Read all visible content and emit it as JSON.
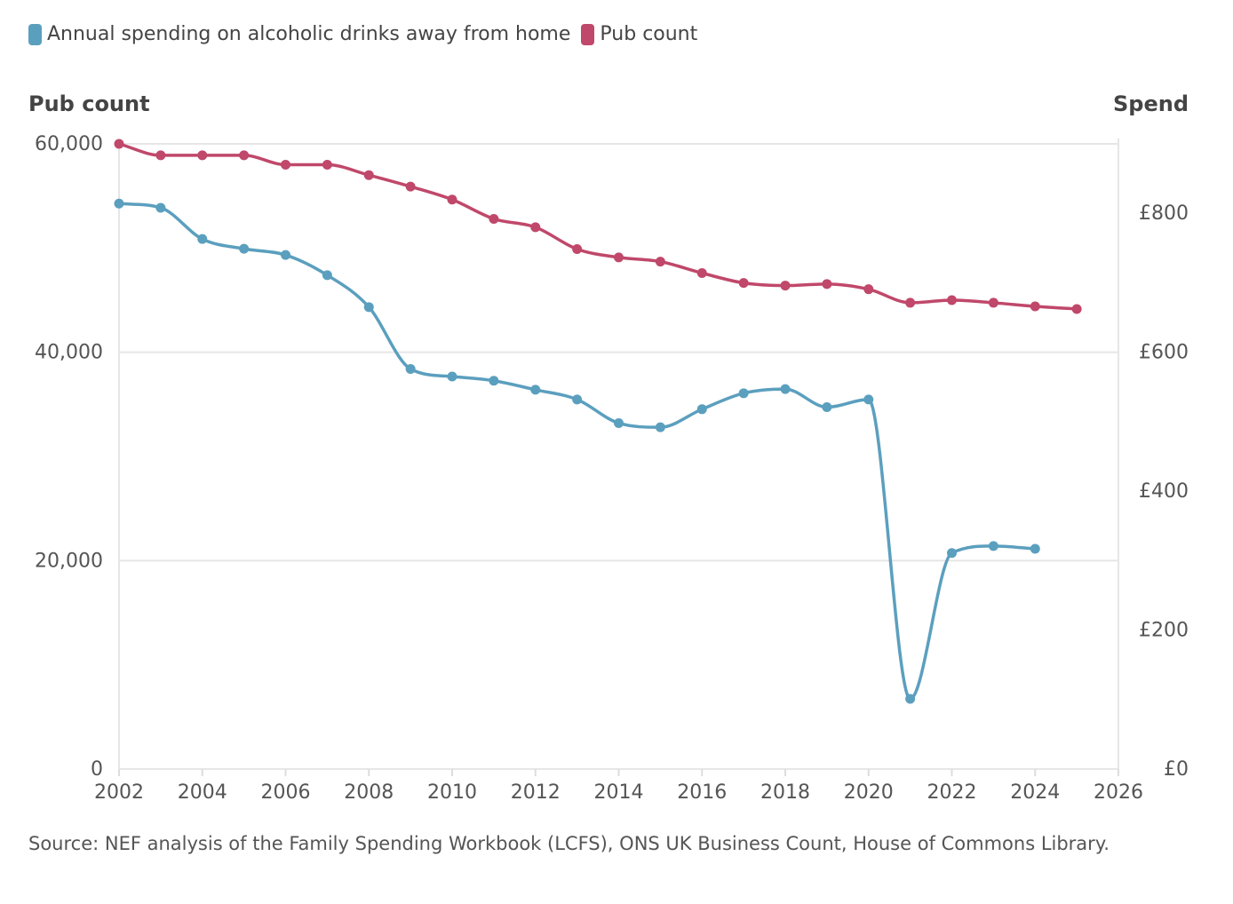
{
  "chart_data": {
    "type": "line",
    "title": "",
    "legend_position": "top-left",
    "grid": true,
    "x": [
      2002,
      2003,
      2004,
      2005,
      2006,
      2007,
      2008,
      2009,
      2010,
      2011,
      2012,
      2013,
      2014,
      2015,
      2016,
      2017,
      2018,
      2019,
      2020,
      2021,
      2022,
      2023,
      2024,
      2025
    ],
    "xlim": [
      2002,
      2026
    ],
    "x_ticks": [
      "2002",
      "2004",
      "2006",
      "2008",
      "2010",
      "2012",
      "2014",
      "2016",
      "2018",
      "2020",
      "2022",
      "2024",
      "2026"
    ],
    "left_axis": {
      "label": "Pub count",
      "ylim": [
        0,
        60000
      ],
      "ticks": [
        "0",
        "20,000",
        "40,000",
        "60,000"
      ]
    },
    "right_axis": {
      "label": "Spend",
      "ylim": [
        0,
        900
      ],
      "ticks": [
        "£0",
        "£200",
        "£400",
        "£600",
        "£800"
      ]
    },
    "series": [
      {
        "name": "Annual spending on alcoholic drinks away from home",
        "axis": "right",
        "color": "#5b9fbe",
        "values": [
          814,
          808,
          763,
          749,
          740,
          711,
          665,
          576,
          565,
          559,
          546,
          532,
          498,
          492,
          518,
          541,
          547,
          521,
          532,
          101,
          311,
          321,
          317,
          null
        ]
      },
      {
        "name": "Pub count",
        "axis": "left",
        "color": "#c0486a",
        "values": [
          60000,
          58900,
          58900,
          58900,
          58000,
          58000,
          57000,
          55900,
          54650,
          52800,
          52000,
          49900,
          49100,
          48700,
          47600,
          46650,
          46400,
          46550,
          46050,
          44750,
          45000,
          44750,
          44400,
          44150
        ]
      }
    ]
  },
  "source": "Source: NEF analysis of the Family Spending Workbook (LCFS), ONS UK Business Count, House of Commons Library."
}
